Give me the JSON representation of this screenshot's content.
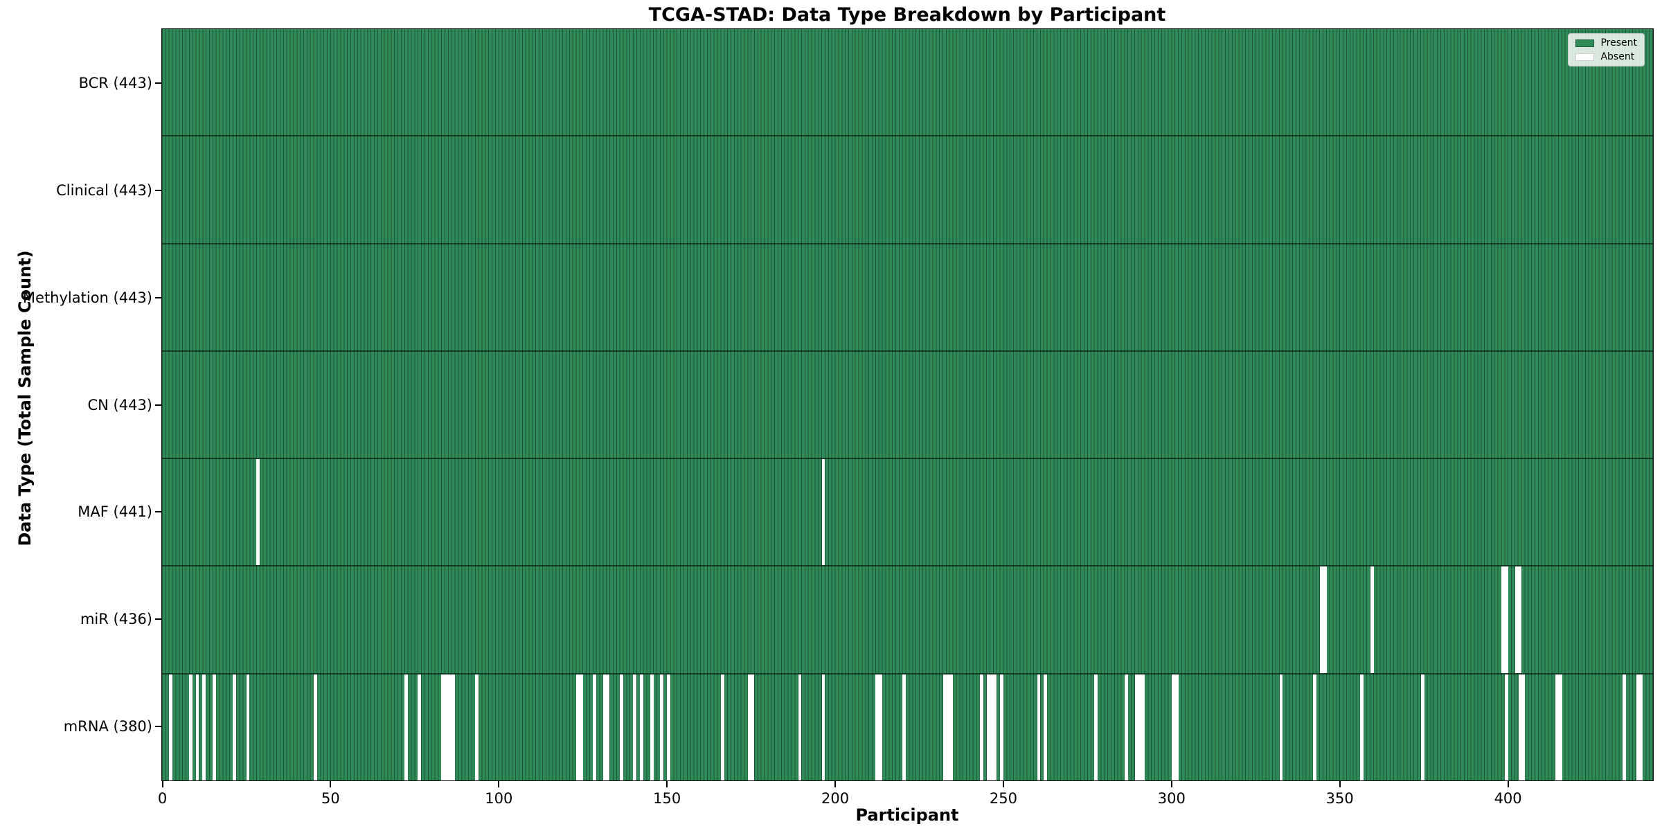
{
  "figure": {
    "title": "TCGA-STAD: Data Type Breakdown by Participant",
    "xlabel": "Participant",
    "ylabel": "Data Type (Total Sample Count)"
  },
  "colors": {
    "present": "#2e8b57",
    "absent": "#ffffff",
    "bar_edge": "rgba(0,0,0,0.38)",
    "row_divider": "rgba(0,0,0,0.55)",
    "spine": "#000000",
    "background": "#ffffff"
  },
  "chart_data": {
    "type": "heatmap",
    "title": "TCGA-STAD: Data Type Breakdown by Participant",
    "xlabel": "Participant",
    "ylabel": "Data Type (Total Sample Count)",
    "n_participants": 443,
    "x_ticks": [
      0,
      50,
      100,
      150,
      200,
      250,
      300,
      350,
      400
    ],
    "grid": false,
    "legend_position": "upper right",
    "legend_entries": [
      "Present",
      "Absent"
    ],
    "rows": [
      {
        "name": "BCR",
        "label": "BCR (443)",
        "present_count": 443,
        "absent_participants": []
      },
      {
        "name": "Clinical",
        "label": "Clinical (443)",
        "present_count": 443,
        "absent_participants": []
      },
      {
        "name": "Methylation",
        "label": "Methylation (443)",
        "present_count": 443,
        "absent_participants": []
      },
      {
        "name": "CN",
        "label": "CN (443)",
        "present_count": 443,
        "absent_participants": []
      },
      {
        "name": "MAF",
        "label": "MAF (441)",
        "present_count": 441,
        "absent_participants": [
          28,
          196
        ]
      },
      {
        "name": "miR",
        "label": "miR (436)",
        "present_count": 436,
        "absent_participants": [
          344,
          345,
          359,
          398,
          399,
          402,
          403
        ]
      },
      {
        "name": "mRNA",
        "label": "mRNA (380)",
        "present_count": 380,
        "absent_participants": [
          2,
          8,
          10,
          12,
          15,
          21,
          25,
          45,
          72,
          76,
          83,
          84,
          85,
          86,
          93,
          123,
          124,
          128,
          131,
          132,
          136,
          140,
          142,
          145,
          148,
          150,
          166,
          174,
          175,
          189,
          196,
          212,
          213,
          220,
          232,
          233,
          234,
          243,
          245,
          246,
          247,
          249,
          260,
          262,
          277,
          286,
          289,
          290,
          291,
          300,
          301,
          332,
          342,
          356,
          374,
          399,
          403,
          404,
          414,
          415,
          434,
          438,
          439
        ]
      }
    ]
  }
}
